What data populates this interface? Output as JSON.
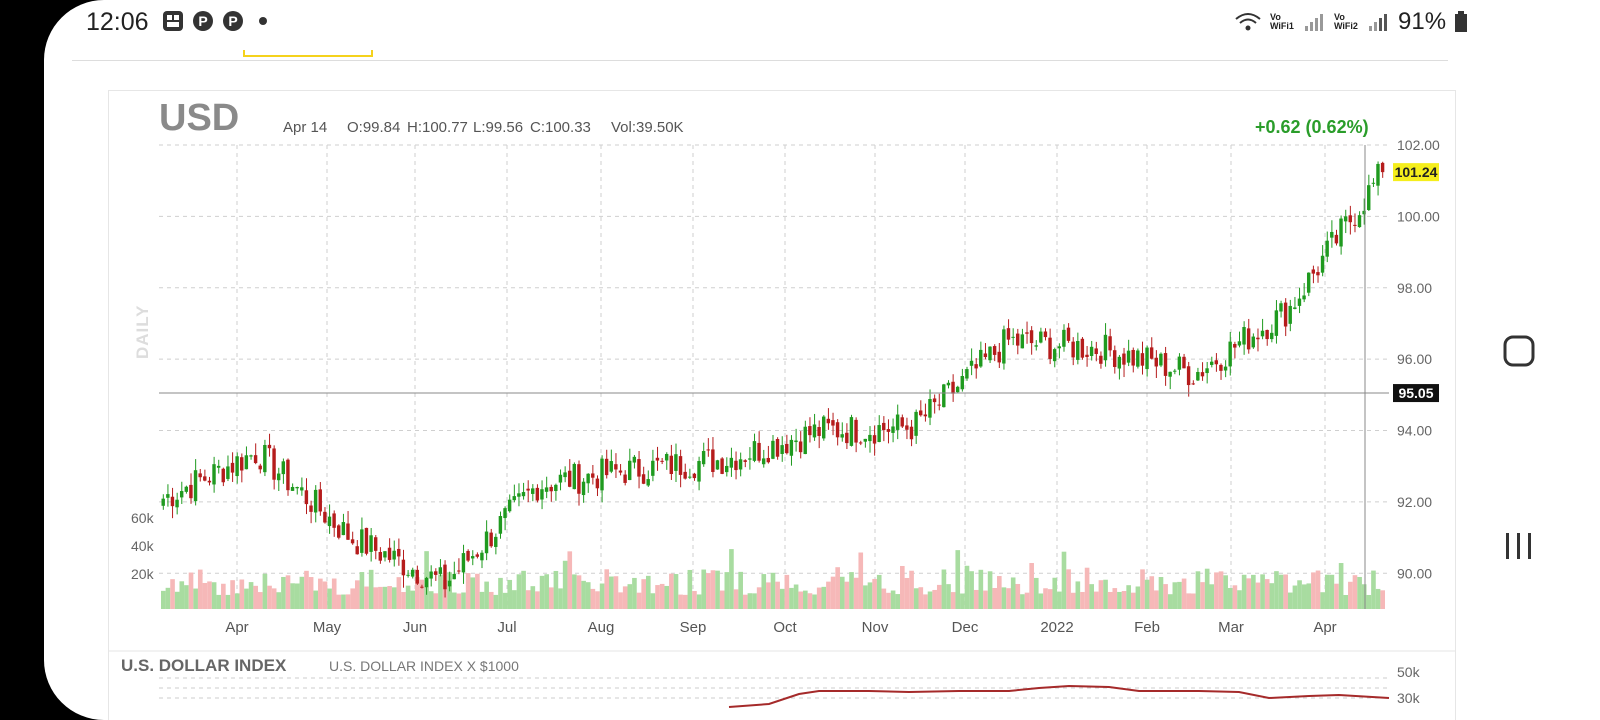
{
  "status_bar": {
    "time": "12:06",
    "wifi1_label": "Vo WiFi1",
    "wifi2_label": "Vo WiFi2",
    "battery": "91%"
  },
  "chart_header": {
    "symbol": "USD",
    "date": "Apr 14",
    "open": "O:99.84",
    "high": "H:100.77",
    "low": "L:99.56",
    "close": "C:100.33",
    "volume": "Vol:39.50K",
    "change": "+0.62 (0.62%)",
    "period": "DAILY"
  },
  "price_panel": {
    "y_ticks": [
      "102.00",
      "100.00",
      "98.00",
      "96.00",
      "94.00",
      "92.00",
      "90.00"
    ],
    "last_price_label": "101.24",
    "reference_label": "95.05",
    "vol_ticks": [
      "60k",
      "40k",
      "20k"
    ],
    "x_ticks": [
      "Apr",
      "May",
      "Jun",
      "Jul",
      "Aug",
      "Sep",
      "Oct",
      "Nov",
      "Dec",
      "2022",
      "Feb",
      "Mar",
      "Apr"
    ]
  },
  "lower_panel": {
    "title": "U.S. DOLLAR INDEX",
    "subtitle": "U.S. DOLLAR INDEX X $1000",
    "y_ticks": [
      "50k",
      "30k"
    ]
  },
  "colors": {
    "up": "#1f9a1f",
    "down": "#b51c1c",
    "up_volume": "#a8dca0",
    "down_volume": "#f6b8b8",
    "change": "#2a9d2a",
    "highlight": "#f5ee1c"
  },
  "chart_data": {
    "type": "line",
    "title": "USD",
    "x": [
      "Mar",
      "Apr",
      "May",
      "Jun",
      "Jul",
      "Aug",
      "Sep",
      "Oct",
      "Nov",
      "Dec",
      "2022",
      "Feb",
      "Mar",
      "Apr"
    ],
    "series": [
      {
        "values": [
          92.1,
          93.4,
          91.0,
          89.7,
          92.5,
          92.9,
          93.2,
          94.0,
          94.1,
          96.5,
          96.3,
          95.6,
          97.4,
          101.24
        ]
      }
    ],
    "ylim": [
      89.0,
      102.0
    ],
    "grid": true
  }
}
